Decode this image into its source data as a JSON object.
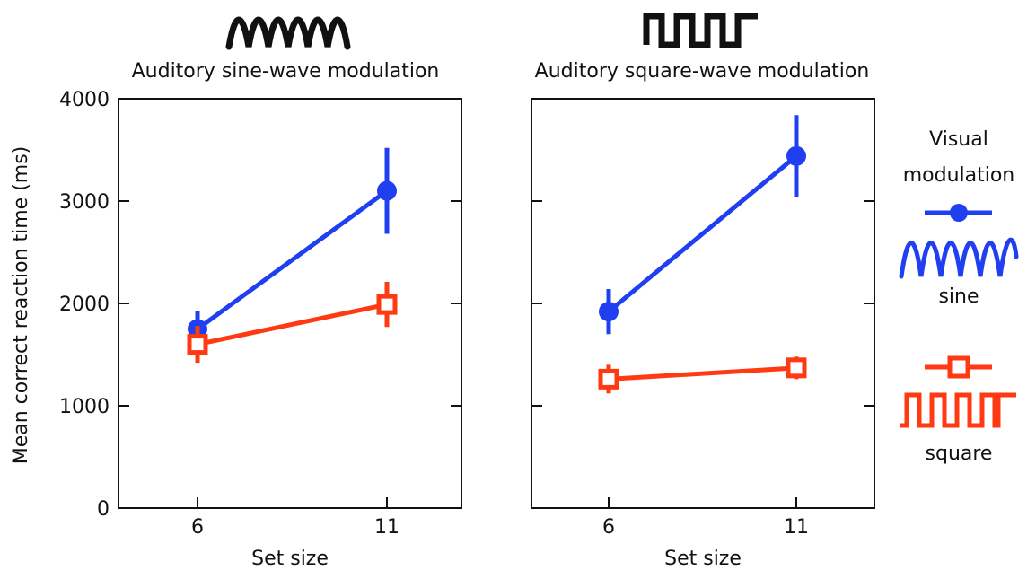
{
  "chart_data": [
    {
      "type": "line",
      "title": "Auditory sine-wave modulation",
      "title_icon": "sine-wave-icon",
      "xlabel": "Set size",
      "ylabel": "Mean correct reaction time (ms)",
      "x_ticks": [
        "6",
        "11"
      ],
      "y_ticks": [
        "0",
        "1000",
        "2000",
        "3000",
        "4000"
      ],
      "ylim": [
        0,
        4000
      ],
      "series": [
        {
          "name": "sine",
          "color": "#1f3ff0",
          "marker": "filled-circle",
          "x": [
            6,
            11
          ],
          "y": [
            1750,
            3100
          ],
          "err": [
            180,
            420
          ]
        },
        {
          "name": "square",
          "color": "#ff3a12",
          "marker": "open-square",
          "x": [
            6,
            11
          ],
          "y": [
            1600,
            1990
          ],
          "err": [
            180,
            220
          ]
        }
      ]
    },
    {
      "type": "line",
      "title": "Auditory square-wave modulation",
      "title_icon": "square-wave-icon",
      "xlabel": "Set size",
      "ylabel": "",
      "x_ticks": [
        "6",
        "11"
      ],
      "y_ticks": [],
      "ylim": [
        0,
        4000
      ],
      "series": [
        {
          "name": "sine",
          "color": "#1f3ff0",
          "marker": "filled-circle",
          "x": [
            6,
            11
          ],
          "y": [
            1920,
            3440
          ],
          "err": [
            220,
            400
          ]
        },
        {
          "name": "square",
          "color": "#ff3a12",
          "marker": "open-square",
          "x": [
            6,
            11
          ],
          "y": [
            1260,
            1370
          ],
          "err": [
            140,
            110
          ]
        }
      ]
    }
  ],
  "legend": {
    "title_line1": "Visual",
    "title_line2": "modulation",
    "placement": "right",
    "items": [
      {
        "label": "sine",
        "color": "#1f3ff0",
        "marker": "filled-circle",
        "icon": "sine-wave-icon"
      },
      {
        "label": "square",
        "color": "#ff3a12",
        "marker": "open-square",
        "icon": "square-wave-icon"
      }
    ]
  }
}
